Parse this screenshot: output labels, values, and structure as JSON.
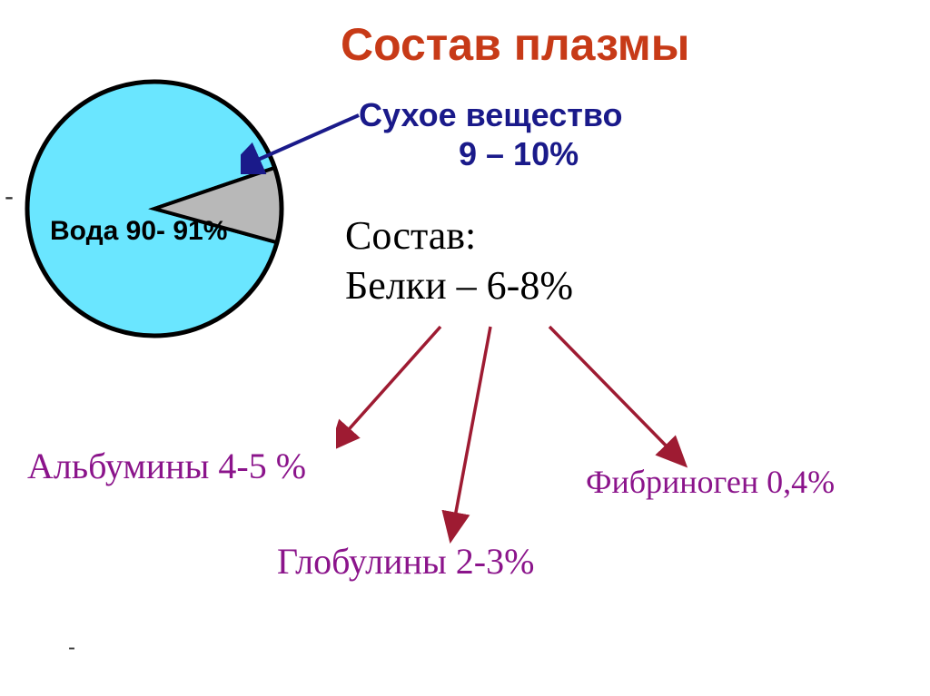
{
  "title": {
    "text": "Состав плазмы",
    "color": "#c73a17"
  },
  "pie": {
    "slices": [
      {
        "label": "Вода 90- 91%",
        "value": 90.5,
        "color": "#6ae6ff"
      },
      {
        "label": "Сухое вещество 9 – 10%",
        "value": 9.5,
        "color": "#b8b8b8"
      }
    ],
    "border_color": "#000000",
    "water_label": "Вода 90- 91%",
    "water_label_color": "#000000"
  },
  "dry_substance": {
    "line1": "Сухое вещество",
    "line2": "9 – 10%",
    "color": "#1a1a8a"
  },
  "arrow_color": "#1a1a8a",
  "composition": {
    "line1": "Состав:",
    "line2": "Белки – 6-8%",
    "color": "#000000"
  },
  "protein_arrow_color": "#9e1b32",
  "proteins": {
    "albumins": {
      "text": "Альбумины 4-5 %",
      "color": "#8b148b"
    },
    "fibrinogen": {
      "text": "Фибриноген 0,4%",
      "color": "#8b148b"
    },
    "globulins": {
      "text": "Глобулины 2-3%",
      "color": "#8b148b"
    }
  },
  "dashes": {
    "left": "-",
    "bottom": "-",
    "color": "#333333"
  }
}
